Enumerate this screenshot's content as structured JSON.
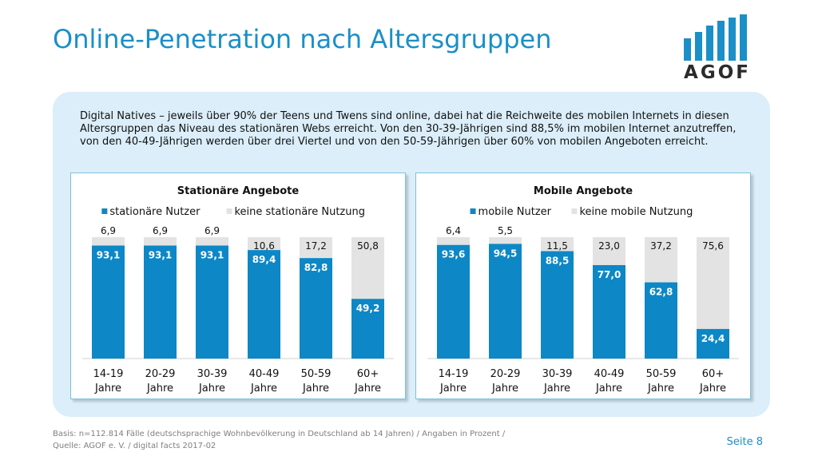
{
  "header": {
    "title": "Online-Penetration nach Altersgruppen",
    "logo_text": "AGOF"
  },
  "intro_text": "Digital Natives – jeweils über 90% der Teens und Twens sind online, dabei hat die Reichweite des mobilen Internets in diesen Altersgruppen das Niveau des stationären Webs erreicht. Von den 30-39-Jährigen sind 88,5% im mobilen Internet anzutreffen, von den 40-49-Jährigen werden über drei Viertel und von den 50-59-Jährigen über 60% von mobilen Angeboten erreicht.",
  "colors": {
    "accent": "#1a8fc8",
    "bar_primary": "#0d87c6",
    "bar_secondary": "#e3e3e3",
    "panel": "#dbeef9"
  },
  "chart_data": [
    {
      "type": "bar",
      "stacked": true,
      "title": "Stationäre Angebote",
      "categories": [
        [
          "14-19",
          "Jahre"
        ],
        [
          "20-29",
          "Jahre"
        ],
        [
          "30-39",
          "Jahre"
        ],
        [
          "40-49",
          "Jahre"
        ],
        [
          "50-59",
          "Jahre"
        ],
        [
          "60+",
          "Jahre"
        ]
      ],
      "series": [
        {
          "name": "stationäre Nutzer",
          "color": "#0d87c6",
          "values": [
            93.1,
            93.1,
            93.1,
            89.4,
            82.8,
            49.2
          ],
          "labels": [
            "93,1",
            "93,1",
            "93,1",
            "89,4",
            "82,8",
            "49,2"
          ]
        },
        {
          "name": "keine stationäre Nutzung",
          "color": "#e3e3e3",
          "values": [
            6.9,
            6.9,
            6.9,
            10.6,
            17.2,
            50.8
          ],
          "labels": [
            "6,9",
            "6,9",
            "6,9",
            "10,6",
            "17,2",
            "50,8"
          ]
        }
      ],
      "ylim": [
        0,
        100
      ],
      "legend": "top"
    },
    {
      "type": "bar",
      "stacked": true,
      "title": "Mobile Angebote",
      "categories": [
        [
          "14-19",
          "Jahre"
        ],
        [
          "20-29",
          "Jahre"
        ],
        [
          "30-39",
          "Jahre"
        ],
        [
          "40-49",
          "Jahre"
        ],
        [
          "50-59",
          "Jahre"
        ],
        [
          "60+",
          "Jahre"
        ]
      ],
      "series": [
        {
          "name": "mobile Nutzer",
          "color": "#0d87c6",
          "values": [
            93.6,
            94.5,
            88.5,
            77.0,
            62.8,
            24.4
          ],
          "labels": [
            "93,6",
            "94,5",
            "88,5",
            "77,0",
            "62,8",
            "24,4"
          ]
        },
        {
          "name": "keine mobile Nutzung",
          "color": "#e3e3e3",
          "values": [
            6.4,
            5.5,
            11.5,
            23.0,
            37.2,
            75.6
          ],
          "labels": [
            "6,4",
            "5,5",
            "11,5",
            "23,0",
            "37,2",
            "75,6"
          ]
        }
      ],
      "ylim": [
        0,
        100
      ],
      "legend": "top"
    }
  ],
  "footer": {
    "line1": "Basis: n=112.814 Fälle (deutschsprachige Wohnbevölkerung in Deutschland ab 14 Jahren) / Angaben in Prozent /",
    "line2": "Quelle: AGOF e. V. / digital facts 2017-02",
    "page": "Seite 8"
  }
}
